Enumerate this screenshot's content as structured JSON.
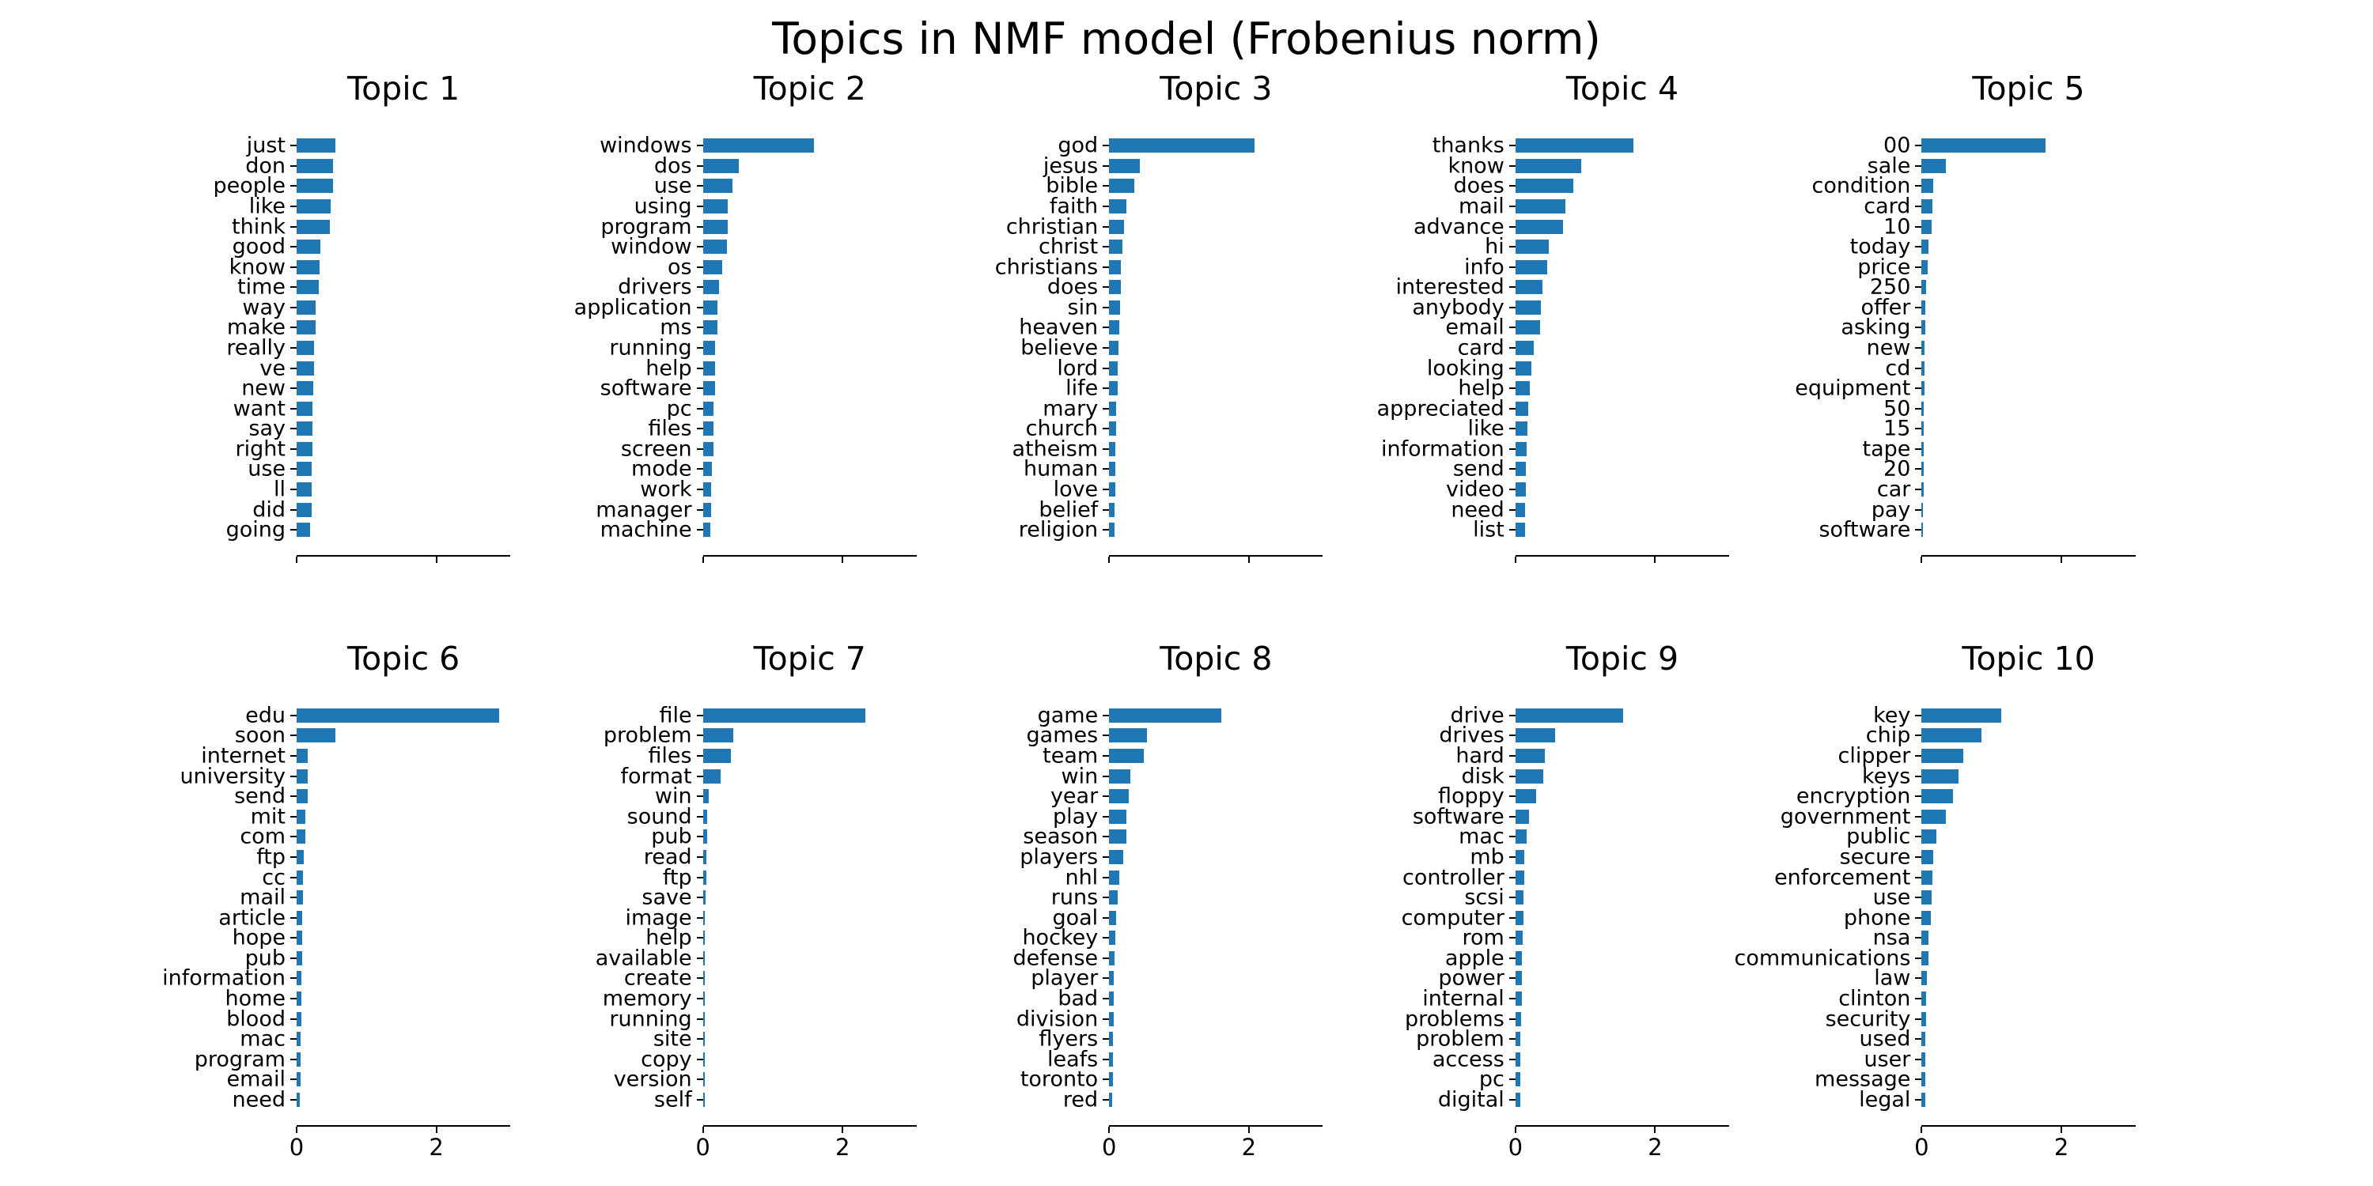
{
  "figure": {
    "title": "Topics in NMF model (Frobenius norm)",
    "background": "#ffffff",
    "bar_color": "#1f77b4",
    "axis_color": "#000000"
  },
  "chart_data": [
    {
      "type": "bar",
      "orientation": "horizontal",
      "title": "Topic 1",
      "xlim": [
        0,
        3.06
      ],
      "x_ticks": [
        0,
        2
      ],
      "grid": false,
      "categories": [
        "just",
        "don",
        "people",
        "like",
        "think",
        "good",
        "know",
        "time",
        "way",
        "make",
        "really",
        "ve",
        "new",
        "want",
        "say",
        "right",
        "use",
        "ll",
        "did",
        "going"
      ],
      "values": [
        0.56,
        0.52,
        0.52,
        0.49,
        0.48,
        0.34,
        0.33,
        0.32,
        0.27,
        0.27,
        0.25,
        0.25,
        0.24,
        0.23,
        0.23,
        0.23,
        0.22,
        0.22,
        0.21,
        0.19
      ]
    },
    {
      "type": "bar",
      "orientation": "horizontal",
      "title": "Topic 2",
      "xlim": [
        0,
        3.06
      ],
      "x_ticks": [
        0,
        2
      ],
      "grid": false,
      "categories": [
        "windows",
        "dos",
        "use",
        "using",
        "program",
        "window",
        "os",
        "drivers",
        "application",
        "ms",
        "running",
        "help",
        "software",
        "pc",
        "files",
        "screen",
        "mode",
        "work",
        "manager",
        "machine"
      ],
      "values": [
        1.59,
        0.51,
        0.42,
        0.35,
        0.35,
        0.34,
        0.28,
        0.23,
        0.21,
        0.21,
        0.18,
        0.18,
        0.17,
        0.15,
        0.15,
        0.15,
        0.13,
        0.12,
        0.12,
        0.11
      ]
    },
    {
      "type": "bar",
      "orientation": "horizontal",
      "title": "Topic 3",
      "xlim": [
        0,
        3.06
      ],
      "x_ticks": [
        0,
        2
      ],
      "grid": false,
      "categories": [
        "god",
        "jesus",
        "bible",
        "faith",
        "christian",
        "christ",
        "christians",
        "does",
        "sin",
        "heaven",
        "believe",
        "lord",
        "life",
        "mary",
        "church",
        "atheism",
        "human",
        "love",
        "belief",
        "religion"
      ],
      "values": [
        2.08,
        0.44,
        0.36,
        0.25,
        0.21,
        0.19,
        0.17,
        0.17,
        0.155,
        0.15,
        0.135,
        0.125,
        0.12,
        0.105,
        0.1,
        0.09,
        0.09,
        0.085,
        0.08,
        0.078
      ]
    },
    {
      "type": "bar",
      "orientation": "horizontal",
      "title": "Topic 4",
      "xlim": [
        0,
        3.06
      ],
      "x_ticks": [
        0,
        2
      ],
      "grid": false,
      "categories": [
        "thanks",
        "know",
        "does",
        "mail",
        "advance",
        "hi",
        "info",
        "interested",
        "anybody",
        "email",
        "card",
        "looking",
        "help",
        "appreciated",
        "like",
        "information",
        "send",
        "video",
        "need",
        "list"
      ],
      "values": [
        1.69,
        0.94,
        0.83,
        0.71,
        0.68,
        0.48,
        0.46,
        0.39,
        0.36,
        0.35,
        0.26,
        0.23,
        0.21,
        0.18,
        0.17,
        0.16,
        0.15,
        0.145,
        0.14,
        0.14
      ]
    },
    {
      "type": "bar",
      "orientation": "horizontal",
      "title": "Topic 5",
      "xlim": [
        0,
        3.06
      ],
      "x_ticks": [
        0,
        2
      ],
      "grid": false,
      "categories": [
        "00",
        "sale",
        "condition",
        "card",
        "10",
        "today",
        "price",
        "250",
        "offer",
        "asking",
        "new",
        "cd",
        "equipment",
        "50",
        "15",
        "tape",
        "20",
        "car",
        "pay",
        "software"
      ],
      "values": [
        1.77,
        0.35,
        0.17,
        0.15,
        0.14,
        0.094,
        0.087,
        0.064,
        0.056,
        0.053,
        0.045,
        0.042,
        0.038,
        0.034,
        0.031,
        0.03,
        0.027,
        0.024,
        0.023,
        0.022
      ]
    },
    {
      "type": "bar",
      "orientation": "horizontal",
      "title": "Topic 6",
      "xlim": [
        0,
        3.06
      ],
      "x_ticks": [
        0,
        2
      ],
      "grid": false,
      "categories": [
        "edu",
        "soon",
        "internet",
        "university",
        "send",
        "mit",
        "com",
        "ftp",
        "cc",
        "mail",
        "article",
        "hope",
        "pub",
        "information",
        "home",
        "blood",
        "mac",
        "program",
        "email",
        "need"
      ],
      "values": [
        2.9,
        0.56,
        0.16,
        0.16,
        0.155,
        0.13,
        0.12,
        0.1,
        0.095,
        0.09,
        0.082,
        0.078,
        0.075,
        0.07,
        0.066,
        0.064,
        0.06,
        0.056,
        0.054,
        0.05
      ]
    },
    {
      "type": "bar",
      "orientation": "horizontal",
      "title": "Topic 7",
      "xlim": [
        0,
        3.06
      ],
      "x_ticks": [
        0,
        2
      ],
      "grid": false,
      "categories": [
        "file",
        "problem",
        "files",
        "format",
        "win",
        "sound",
        "pub",
        "read",
        "ftp",
        "save",
        "image",
        "help",
        "available",
        "create",
        "memory",
        "running",
        "site",
        "copy",
        "version",
        "self"
      ],
      "values": [
        2.33,
        0.44,
        0.4,
        0.25,
        0.083,
        0.065,
        0.057,
        0.055,
        0.047,
        0.038,
        0.032,
        0.031,
        0.027,
        0.026,
        0.023,
        0.022,
        0.021,
        0.02,
        0.019,
        0.017
      ]
    },
    {
      "type": "bar",
      "orientation": "horizontal",
      "title": "Topic 8",
      "xlim": [
        0,
        3.06
      ],
      "x_ticks": [
        0,
        2
      ],
      "grid": false,
      "categories": [
        "game",
        "games",
        "team",
        "win",
        "year",
        "play",
        "season",
        "players",
        "nhl",
        "runs",
        "goal",
        "hockey",
        "defense",
        "player",
        "bad",
        "division",
        "flyers",
        "leafs",
        "toronto",
        "red"
      ],
      "values": [
        1.61,
        0.54,
        0.5,
        0.3,
        0.28,
        0.25,
        0.25,
        0.2,
        0.15,
        0.12,
        0.095,
        0.094,
        0.077,
        0.07,
        0.066,
        0.063,
        0.06,
        0.058,
        0.057,
        0.046
      ]
    },
    {
      "type": "bar",
      "orientation": "horizontal",
      "title": "Topic 9",
      "xlim": [
        0,
        3.06
      ],
      "x_ticks": [
        0,
        2
      ],
      "grid": false,
      "categories": [
        "drive",
        "drives",
        "hard",
        "disk",
        "floppy",
        "software",
        "mac",
        "mb",
        "controller",
        "scsi",
        "computer",
        "rom",
        "apple",
        "power",
        "internal",
        "problems",
        "problem",
        "access",
        "pc",
        "digital"
      ],
      "values": [
        1.54,
        0.57,
        0.42,
        0.4,
        0.3,
        0.19,
        0.16,
        0.125,
        0.125,
        0.11,
        0.11,
        0.1,
        0.095,
        0.09,
        0.088,
        0.077,
        0.075,
        0.068,
        0.066,
        0.065
      ]
    },
    {
      "type": "bar",
      "orientation": "horizontal",
      "title": "Topic 10",
      "xlim": [
        0,
        3.06
      ],
      "x_ticks": [
        0,
        2
      ],
      "grid": false,
      "categories": [
        "key",
        "chip",
        "clipper",
        "keys",
        "encryption",
        "government",
        "public",
        "secure",
        "enforcement",
        "use",
        "phone",
        "nsa",
        "communications",
        "law",
        "clinton",
        "security",
        "used",
        "user",
        "message",
        "legal"
      ],
      "values": [
        1.14,
        0.86,
        0.59,
        0.53,
        0.45,
        0.35,
        0.21,
        0.16,
        0.15,
        0.14,
        0.13,
        0.095,
        0.094,
        0.077,
        0.065,
        0.064,
        0.057,
        0.052,
        0.05,
        0.048
      ]
    }
  ]
}
